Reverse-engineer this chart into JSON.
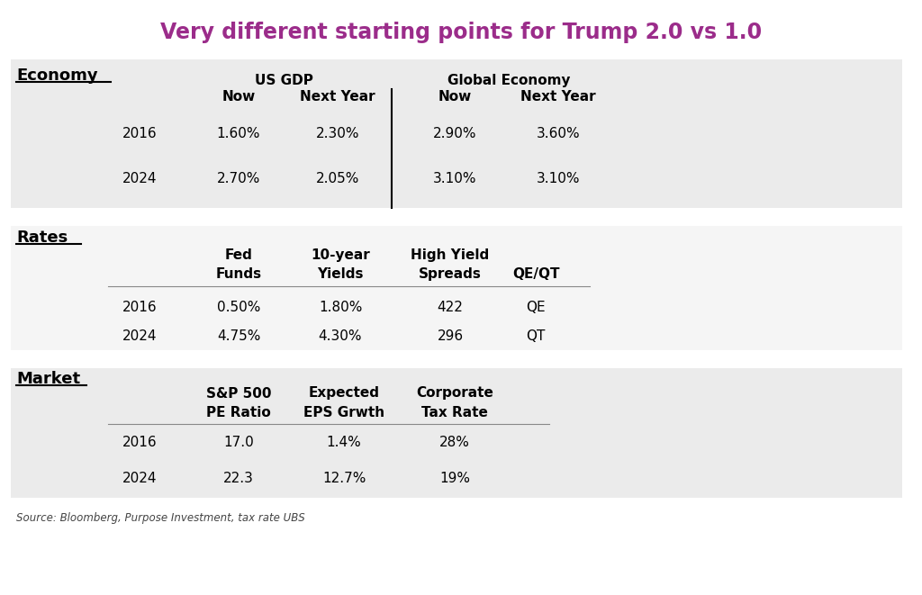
{
  "title": "Very different starting points for Trump 2.0 vs 1.0",
  "title_color": "#9B2C8A",
  "background_color": "#ffffff",
  "source_text": "Source: Bloomberg, Purpose Investment, tax rate UBS",
  "section1": {
    "label": "Economy",
    "subheader1": "US GDP",
    "subheader2": "Global Economy",
    "col_headers": [
      "Now",
      "Next Year",
      "Now",
      "Next Year"
    ],
    "rows": [
      {
        "year": "2016",
        "values": [
          "1.60%",
          "2.30%",
          "2.90%",
          "3.60%"
        ]
      },
      {
        "year": "2024",
        "values": [
          "2.70%",
          "2.05%",
          "3.10%",
          "3.10%"
        ]
      }
    ],
    "bg_color": "#EBEBEB"
  },
  "section2": {
    "label": "Rates",
    "col_header1": [
      "Fed",
      "10-year",
      "High Yield",
      ""
    ],
    "col_header2": [
      "Funds",
      "Yields",
      "Spreads",
      "QE/QT"
    ],
    "rows": [
      {
        "year": "2016",
        "values": [
          "0.50%",
          "1.80%",
          "422",
          "QE"
        ]
      },
      {
        "year": "2024",
        "values": [
          "4.75%",
          "4.30%",
          "296",
          "QT"
        ]
      }
    ],
    "bg_color": "#F5F5F5"
  },
  "section3": {
    "label": "Market",
    "col_header1": [
      "S&P 500",
      "Expected",
      "Corporate",
      ""
    ],
    "col_header2": [
      "PE Ratio",
      "EPS Grwth",
      "Tax Rate",
      ""
    ],
    "rows": [
      {
        "year": "2016",
        "values": [
          "17.0",
          "1.4%",
          "28%",
          ""
        ]
      },
      {
        "year": "2024",
        "values": [
          "22.3",
          "12.7%",
          "19%",
          ""
        ]
      }
    ],
    "bg_color": "#EBEBEB"
  }
}
